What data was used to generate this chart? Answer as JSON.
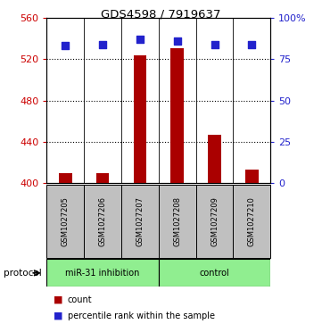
{
  "title": "GDS4598 / 7919637",
  "samples": [
    "GSM1027205",
    "GSM1027206",
    "GSM1027207",
    "GSM1027208",
    "GSM1027209",
    "GSM1027210"
  ],
  "counts": [
    410,
    410,
    524,
    531,
    447,
    413
  ],
  "percentiles": [
    83.5,
    84,
    87,
    86,
    84,
    84
  ],
  "group_labels": [
    "miR-31 inhibition",
    "control"
  ],
  "group_ranges": [
    [
      0,
      2
    ],
    [
      3,
      5
    ]
  ],
  "group_color": "#90EE90",
  "bar_color": "#AA0000",
  "marker_color": "#2222CC",
  "ylim_left": [
    400,
    560
  ],
  "ylim_right": [
    0,
    100
  ],
  "yticks_left": [
    400,
    440,
    480,
    520,
    560
  ],
  "yticks_right": [
    0,
    25,
    50,
    75,
    100
  ],
  "ytick_labels_right": [
    "0",
    "25",
    "50",
    "75",
    "100%"
  ],
  "left_tick_color": "#CC0000",
  "right_tick_color": "#2222CC",
  "bar_width": 0.35,
  "sample_box_color": "#C0C0C0",
  "protocol_label": "protocol",
  "legend_items": [
    "count",
    "percentile rank within the sample"
  ],
  "legend_colors": [
    "#AA0000",
    "#2222CC"
  ],
  "background_color": "#FFFFFF"
}
